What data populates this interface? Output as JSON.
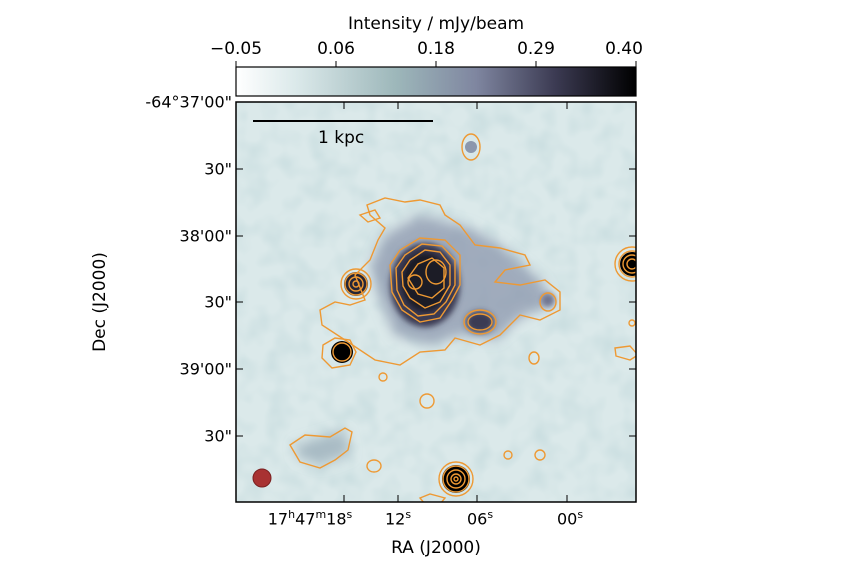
{
  "colorbar": {
    "title": "Intensity / mJy/beam",
    "ticks": [
      "−0.05",
      "0.06",
      "0.18",
      "0.29",
      "0.40"
    ],
    "range": [
      -0.05,
      0.4
    ],
    "colormap": "bone_r"
  },
  "axes": {
    "ylabel": "Dec (J2000)",
    "xlabel": "RA (J2000)",
    "yticks": [
      "-64°37'00\"",
      "30\"",
      "38'00\"",
      "30\"",
      "39'00\"",
      "30\""
    ],
    "xticks": [
      {
        "pre": "17",
        "h": "h",
        "mid": "47",
        "m": "m",
        "sec": "18",
        "s": "s"
      },
      {
        "text": "12"
      },
      {
        "text": "06"
      },
      {
        "pre": "00",
        "s": "s"
      }
    ],
    "xtick_12_sup": "s",
    "xtick_06_sup": "s"
  },
  "scalebar": {
    "label": "1 kpc"
  },
  "colors": {
    "contour": "#ee9933",
    "beam": "#a83232",
    "background_low": "#dbe9ea",
    "background_high": "#000000"
  }
}
